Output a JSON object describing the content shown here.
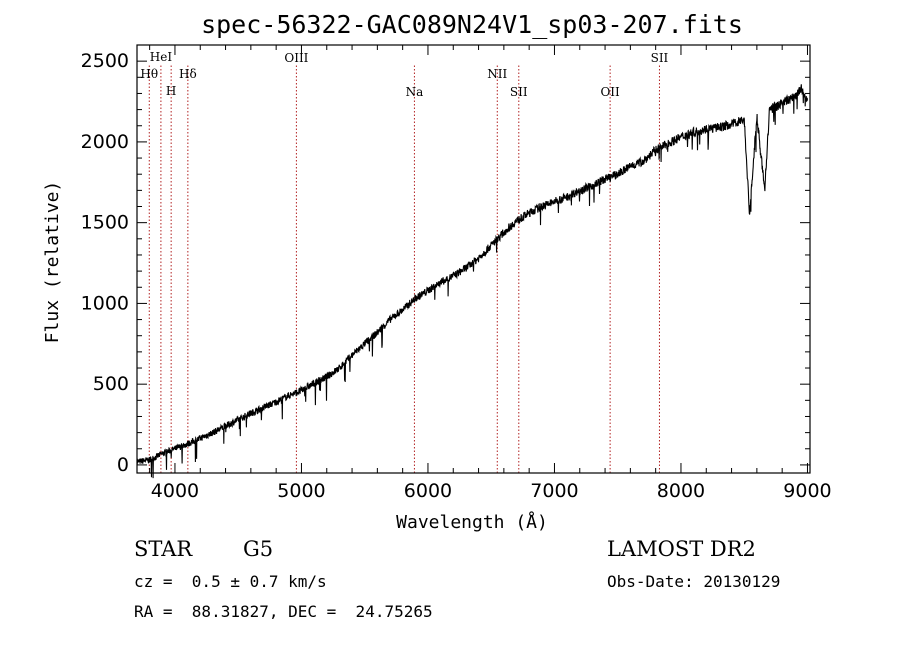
{
  "chart_data": {
    "type": "line",
    "title": "spec-56322-GAC089N24V1_sp03-207.fits",
    "xlabel": "Wavelength (Å)",
    "ylabel": "Flux (relative)",
    "xlim": [
      3700,
      9020
    ],
    "ylim": [
      -50,
      2600
    ],
    "xticks": [
      4000,
      5000,
      6000,
      7000,
      8000,
      9000
    ],
    "yticks": [
      0,
      500,
      1000,
      1500,
      2000,
      2500
    ],
    "grid": false,
    "spectral_lines": [
      {
        "label": "Hθ",
        "wavelength": 3797,
        "tier": 3
      },
      {
        "label": "HeI",
        "wavelength": 3889,
        "tier": 1
      },
      {
        "label": "H",
        "wavelength": 3970,
        "tier": 4
      },
      {
        "label": "Hδ",
        "wavelength": 4102,
        "tier": 3
      },
      {
        "label": "OIII",
        "wavelength": 4960,
        "tier": 2
      },
      {
        "label": "Na",
        "wavelength": 5893,
        "tier": 5
      },
      {
        "label": "NII",
        "wavelength": 6548,
        "tier": 3
      },
      {
        "label": "SII",
        "wavelength": 6718,
        "tier": 5
      },
      {
        "label": "OII",
        "wavelength": 7440,
        "tier": 5
      },
      {
        "label": "SII",
        "wavelength": 7830,
        "tier": 2
      }
    ],
    "series": [
      {
        "color": "#000000",
        "points": [
          [
            3700,
            20
          ],
          [
            3800,
            30
          ],
          [
            3900,
            70
          ],
          [
            4000,
            100
          ],
          [
            4100,
            130
          ],
          [
            4200,
            165
          ],
          [
            4300,
            200
          ],
          [
            4400,
            240
          ],
          [
            4500,
            280
          ],
          [
            4600,
            320
          ],
          [
            4700,
            355
          ],
          [
            4800,
            390
          ],
          [
            4900,
            430
          ],
          [
            5000,
            460
          ],
          [
            5100,
            505
          ],
          [
            5200,
            545
          ],
          [
            5300,
            600
          ],
          [
            5400,
            680
          ],
          [
            5500,
            750
          ],
          [
            5600,
            820
          ],
          [
            5700,
            900
          ],
          [
            5800,
            960
          ],
          [
            5900,
            1030
          ],
          [
            6000,
            1080
          ],
          [
            6100,
            1130
          ],
          [
            6200,
            1170
          ],
          [
            6300,
            1220
          ],
          [
            6400,
            1280
          ],
          [
            6500,
            1360
          ],
          [
            6600,
            1440
          ],
          [
            6700,
            1510
          ],
          [
            6800,
            1560
          ],
          [
            6900,
            1600
          ],
          [
            7000,
            1630
          ],
          [
            7100,
            1660
          ],
          [
            7200,
            1700
          ],
          [
            7300,
            1730
          ],
          [
            7400,
            1770
          ],
          [
            7500,
            1800
          ],
          [
            7600,
            1850
          ],
          [
            7700,
            1880
          ],
          [
            7800,
            1950
          ],
          [
            7900,
            1990
          ],
          [
            8000,
            2030
          ],
          [
            8100,
            2060
          ],
          [
            8200,
            2080
          ],
          [
            8300,
            2090
          ],
          [
            8400,
            2110
          ],
          [
            8500,
            2140
          ],
          [
            8542,
            1550
          ],
          [
            8600,
            2160
          ],
          [
            8662,
            1700
          ],
          [
            8700,
            2200
          ],
          [
            8800,
            2240
          ],
          [
            8900,
            2280
          ],
          [
            8950,
            2330
          ],
          [
            9000,
            2250
          ]
        ]
      }
    ]
  },
  "info": {
    "object_class": "STAR",
    "subclass": "G5",
    "redshift_text": "cz =  0.5 ± 0.7 km/s",
    "coords_text": "RA =  88.31827, DEC =  24.75265",
    "survey": "LAMOST DR2",
    "obs_date_text": "Obs-Date: 20130129"
  }
}
